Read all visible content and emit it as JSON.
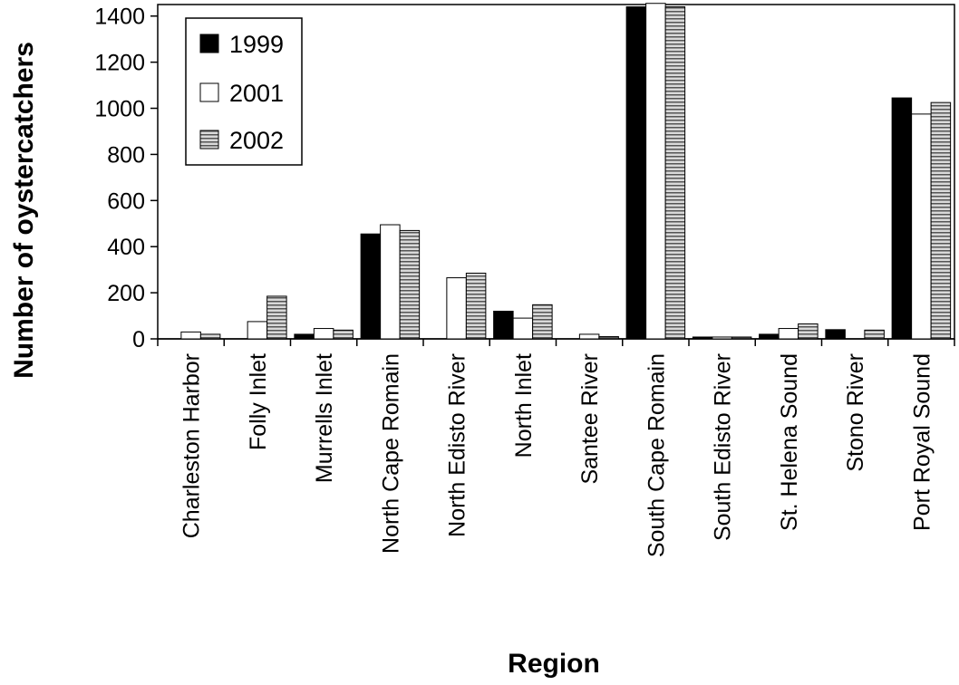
{
  "chart_data": {
    "type": "bar",
    "xlabel": "Region",
    "ylabel": "Number of oystercatchers",
    "ylim": [
      0,
      1450
    ],
    "yticks": [
      0,
      200,
      400,
      600,
      800,
      1000,
      1200,
      1400
    ],
    "grid": false,
    "legend_position": "top-left",
    "categories": [
      "Charleston Harbor",
      "Folly Inlet",
      "Murrells Inlet",
      "North Cape Romain",
      "North Edisto River",
      "North Inlet",
      "Santee River",
      "South Cape Romain",
      "South Edisto River",
      "St. Helena Sound",
      "Stono River",
      "Port Royal Sound"
    ],
    "series": [
      {
        "name": "1999",
        "fill": "#000000",
        "values": [
          0,
          0,
          20,
          455,
          0,
          120,
          0,
          1440,
          8,
          20,
          40,
          1045
        ]
      },
      {
        "name": "2001",
        "fill": "#ffffff",
        "values": [
          30,
          75,
          45,
          495,
          265,
          90,
          20,
          1455,
          8,
          45,
          0,
          975
        ]
      },
      {
        "name": "2002",
        "fill": "hatched-gray",
        "values": [
          20,
          185,
          38,
          470,
          285,
          148,
          10,
          1440,
          8,
          65,
          38,
          1025
        ]
      }
    ]
  }
}
